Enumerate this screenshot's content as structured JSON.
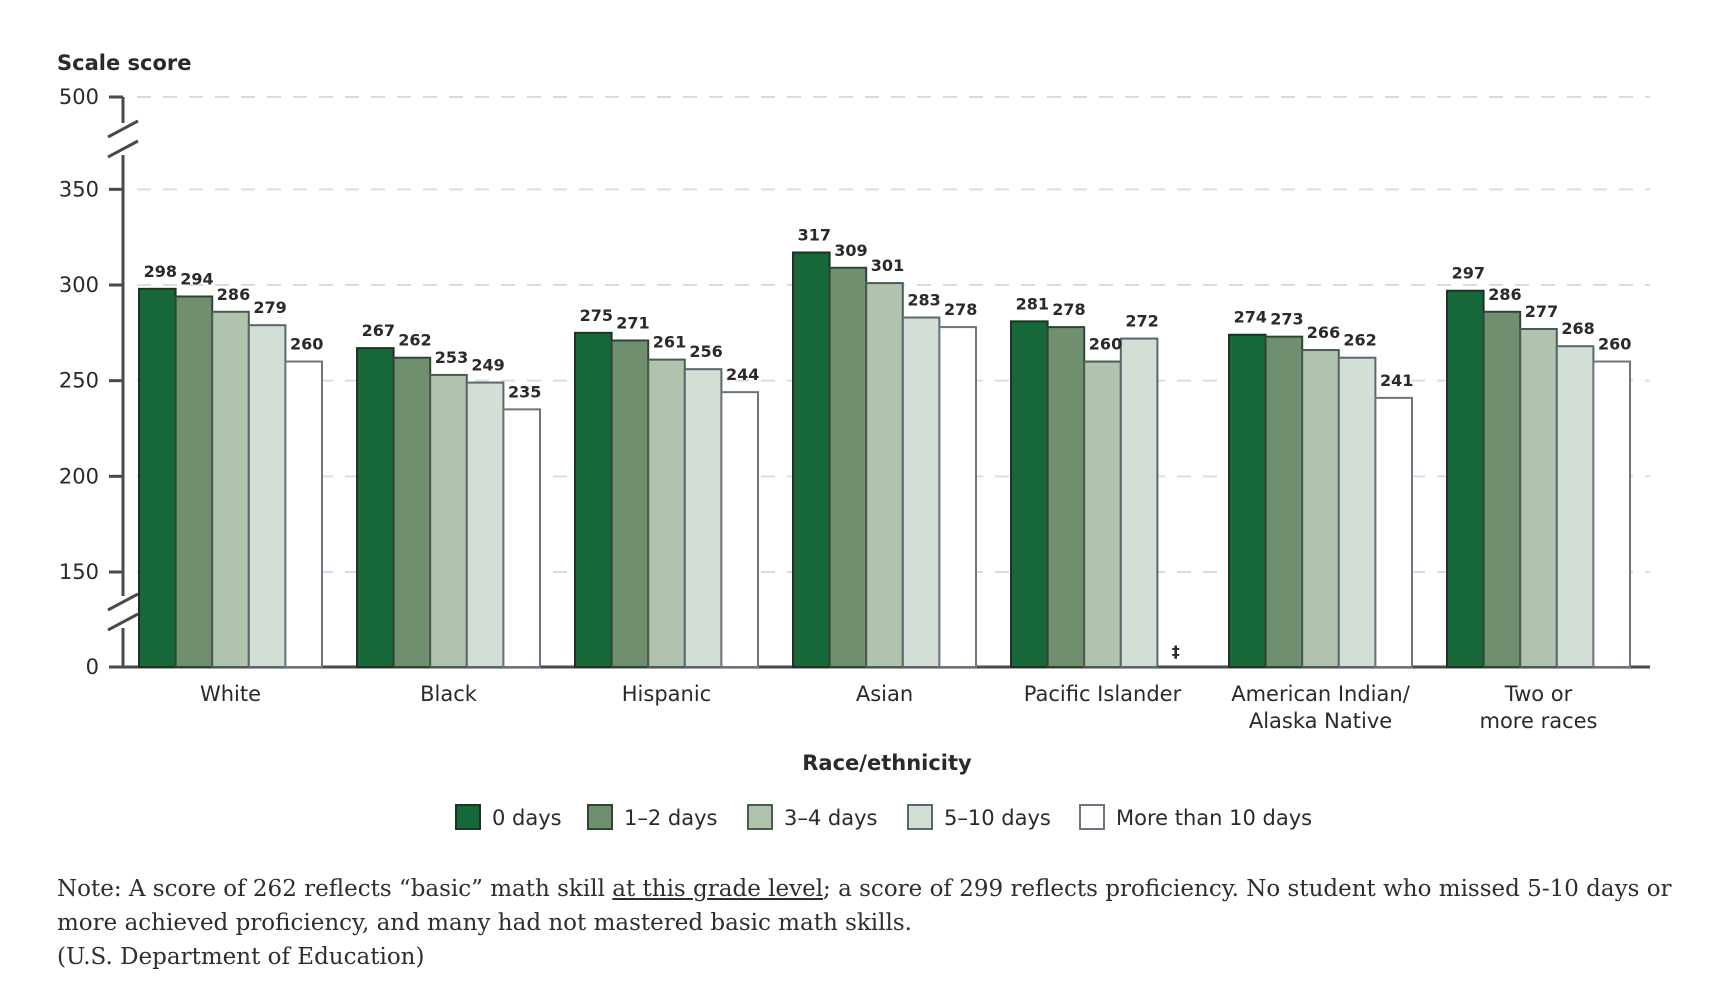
{
  "chart_data": {
    "type": "bar",
    "title": "",
    "ylabel": "Scale score",
    "xlabel": "Race/ethnicity",
    "ylim": [
      0,
      500
    ],
    "y_ticks": [
      0,
      150,
      200,
      250,
      300,
      350,
      500
    ],
    "axis_breaks": [
      "0-150",
      "350-500"
    ],
    "grid": true,
    "legend_position": "bottom-center",
    "categories": [
      [
        "White"
      ],
      [
        "Black"
      ],
      [
        "Hispanic"
      ],
      [
        "Asian"
      ],
      [
        "Pacific Islander"
      ],
      [
        "American Indian/",
        "Alaska Native"
      ],
      [
        "Two or",
        "more races"
      ]
    ],
    "series": [
      {
        "name": "0 days",
        "color": "#176838",
        "values": [
          298,
          267,
          275,
          317,
          281,
          274,
          297
        ]
      },
      {
        "name": "1–2 days",
        "color": "#6f8f6f",
        "values": [
          294,
          262,
          271,
          309,
          278,
          273,
          286
        ]
      },
      {
        "name": "3–4 days",
        "color": "#b0c3ad",
        "values": [
          286,
          253,
          261,
          301,
          260,
          266,
          277
        ]
      },
      {
        "name": "5–10 days",
        "color": "#d3ded4",
        "values": [
          279,
          249,
          256,
          283,
          272,
          262,
          268
        ]
      },
      {
        "name": "More than 10 days",
        "color": "#ffffff",
        "values": [
          260,
          235,
          244,
          278,
          null,
          241,
          260
        ]
      }
    ],
    "missing_marker": "‡"
  },
  "note": {
    "prefix": "Note: A score of 262 reflects “basic” math skill ",
    "link": "at this grade level",
    "suffix": "; a score of 299 reflects proficiency. No student who missed 5-10 days or more achieved proficiency, and many had not mastered basic math skills.",
    "source": "(U.S. Department of Education)"
  }
}
